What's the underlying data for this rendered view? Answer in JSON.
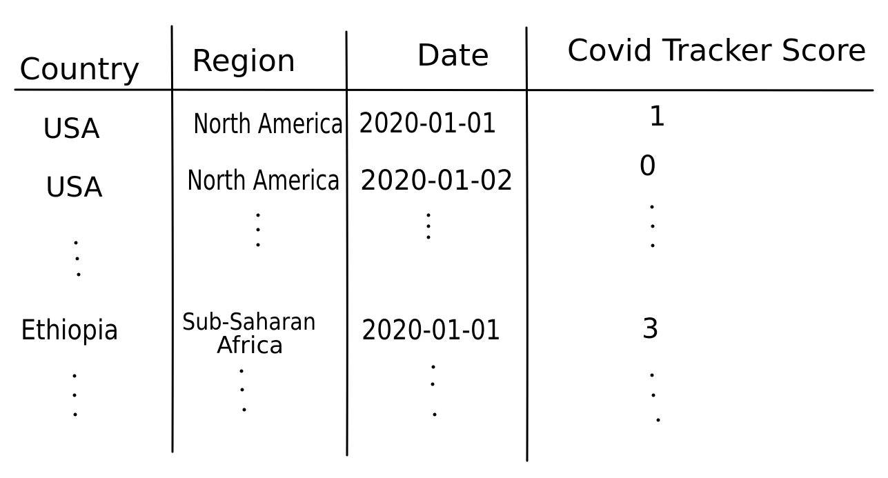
{
  "table": {
    "headers": [
      "Country",
      "Region",
      "Date",
      "Covid Tracker Score"
    ],
    "rows": [
      {
        "country": "USA",
        "region": "North America",
        "date": "2020-01-01",
        "score": "1"
      },
      {
        "country": "USA",
        "region": "North America",
        "date": "2020-01-02",
        "score": "0"
      },
      {
        "country": "Ethiopia",
        "region_line1": "Sub-Saharan",
        "region_line2": "Africa",
        "date": "2020-01-01",
        "score": "3"
      }
    ]
  },
  "ink_color": "#000000"
}
